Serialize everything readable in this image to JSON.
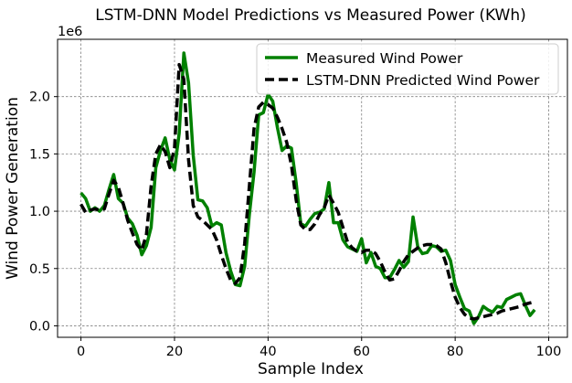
{
  "chart_data": {
    "type": "line",
    "title": "LSTM-DNN Model Predictions vs Measured Power (KWh)",
    "xlabel": "Sample Index",
    "ylabel": "Wind Power Generation",
    "offset_label": "1e6",
    "xlim": [
      -5,
      104
    ],
    "ylim": [
      -0.1,
      2.5
    ],
    "x_ticks": [
      0,
      20,
      40,
      60,
      80,
      100
    ],
    "y_ticks": [
      0.0,
      0.5,
      1.0,
      1.5,
      2.0
    ],
    "y_tick_labels": [
      "0.0",
      "0.5",
      "1.0",
      "1.5",
      "2.0"
    ],
    "grid": true,
    "legend_position": "top-right",
    "series": [
      {
        "name": "Measured Wind Power",
        "color": "#008000",
        "style": "solid",
        "values": [
          1.16,
          1.11,
          1.0,
          1.03,
          1.0,
          1.05,
          1.19,
          1.32,
          1.11,
          1.07,
          0.94,
          0.89,
          0.79,
          0.62,
          0.7,
          0.86,
          1.38,
          1.53,
          1.64,
          1.45,
          1.36,
          1.68,
          2.38,
          2.12,
          1.49,
          1.1,
          1.09,
          1.03,
          0.87,
          0.9,
          0.88,
          0.64,
          0.48,
          0.36,
          0.35,
          0.52,
          0.97,
          1.34,
          1.84,
          1.86,
          2.02,
          1.96,
          1.73,
          1.53,
          1.57,
          1.55,
          1.25,
          0.89,
          0.87,
          0.93,
          0.98,
          0.99,
          1.02,
          1.25,
          0.9,
          0.9,
          0.75,
          0.69,
          0.67,
          0.65,
          0.76,
          0.55,
          0.64,
          0.52,
          0.5,
          0.42,
          0.42,
          0.49,
          0.57,
          0.51,
          0.56,
          0.95,
          0.69,
          0.63,
          0.64,
          0.7,
          0.69,
          0.65,
          0.66,
          0.57,
          0.36,
          0.25,
          0.15,
          0.13,
          0.02,
          0.08,
          0.17,
          0.14,
          0.12,
          0.17,
          0.16,
          0.23,
          0.25,
          0.27,
          0.28,
          0.18,
          0.09,
          0.14
        ]
      },
      {
        "name": "LSTM-DNN Predicted Wind Power",
        "color": "#000000",
        "style": "dashed",
        "values": [
          1.06,
          0.99,
          1.01,
          1.02,
          1.01,
          1.02,
          1.15,
          1.27,
          1.21,
          1.07,
          0.92,
          0.81,
          0.71,
          0.66,
          0.8,
          1.22,
          1.5,
          1.58,
          1.52,
          1.38,
          1.55,
          2.28,
          2.15,
          1.45,
          1.05,
          0.95,
          0.92,
          0.88,
          0.84,
          0.75,
          0.62,
          0.5,
          0.4,
          0.37,
          0.42,
          0.72,
          1.22,
          1.72,
          1.91,
          1.95,
          1.93,
          1.9,
          1.82,
          1.72,
          1.6,
          1.4,
          1.1,
          0.88,
          0.84,
          0.84,
          0.89,
          0.97,
          1.03,
          1.14,
          1.07,
          0.99,
          0.86,
          0.73,
          0.68,
          0.65,
          0.64,
          0.66,
          0.66,
          0.63,
          0.56,
          0.47,
          0.4,
          0.41,
          0.48,
          0.56,
          0.62,
          0.65,
          0.68,
          0.7,
          0.71,
          0.71,
          0.7,
          0.67,
          0.55,
          0.39,
          0.25,
          0.16,
          0.1,
          0.07,
          0.06,
          0.07,
          0.08,
          0.09,
          0.1,
          0.11,
          0.13,
          0.14,
          0.15,
          0.16,
          0.17,
          0.19,
          0.2,
          0.21
        ]
      }
    ]
  }
}
